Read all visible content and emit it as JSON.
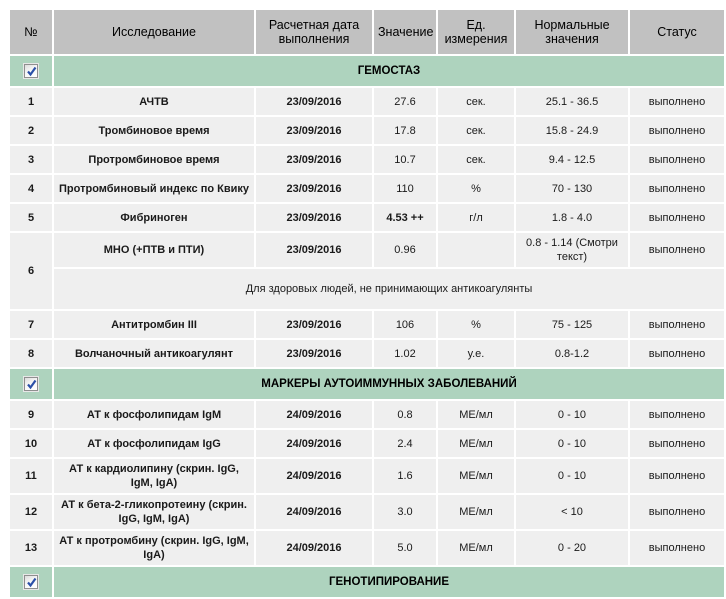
{
  "colors": {
    "header-gray": "#c1c1c1",
    "section-green": "#aed3be",
    "row-gray": "#efefef",
    "check-blue": "#2b50a8"
  },
  "table": {
    "columns": [
      {
        "label": "№"
      },
      {
        "label": "Исследование"
      },
      {
        "label": "Расчетная дата выполнения"
      },
      {
        "label": "Значение"
      },
      {
        "label": "Ед. измерения"
      },
      {
        "label": "Нормальные значения"
      },
      {
        "label": "Статус"
      }
    ],
    "rows": [
      {
        "type": "section",
        "title": "ГЕМОСТАЗ",
        "checked": true
      },
      {
        "type": "test",
        "num": "1",
        "name": "АЧТВ",
        "date": "23/09/2016",
        "value": "27.6",
        "unit": "сек.",
        "normal": "25.1 - 36.5",
        "status": "выполнено"
      },
      {
        "type": "test",
        "num": "2",
        "name": "Тромбиновое время",
        "date": "23/09/2016",
        "value": "17.8",
        "unit": "сек.",
        "normal": "15.8 - 24.9",
        "status": "выполнено"
      },
      {
        "type": "test",
        "num": "3",
        "name": "Протромбиновое время",
        "date": "23/09/2016",
        "value": "10.7",
        "unit": "сек.",
        "normal": "9.4 - 12.5",
        "status": "выполнено"
      },
      {
        "type": "test",
        "num": "4",
        "name": "Протромбиновый индекс по Квику",
        "date": "23/09/2016",
        "value": "110",
        "unit": "%",
        "normal": "70 - 130",
        "status": "выполнено"
      },
      {
        "type": "test",
        "num": "5",
        "name": "Фибриноген",
        "date": "23/09/2016",
        "value": "4.53 ++",
        "value_bold": true,
        "unit": "г/л",
        "normal": "1.8 - 4.0",
        "status": "выполнено"
      },
      {
        "type": "test",
        "num": "6",
        "name": "МНО (+ПТВ и ПТИ)",
        "date": "23/09/2016",
        "value": "0.96",
        "unit": "",
        "normal": "0.8 - 1.14 (Смотри текст)",
        "status": "выполнено",
        "note": "Для здоровых людей, не принимающих антикоагулянты"
      },
      {
        "type": "test",
        "num": "7",
        "name": "Антитромбин III",
        "date": "23/09/2016",
        "value": "106",
        "unit": "%",
        "normal": "75 - 125",
        "status": "выполнено"
      },
      {
        "type": "test",
        "num": "8",
        "name": "Волчаночный антикоагулянт",
        "date": "23/09/2016",
        "value": "1.02",
        "unit": "у.е.",
        "normal": "0.8-1.2",
        "status": "выполнено"
      },
      {
        "type": "section",
        "title": "МАРКЕРЫ АУТОИММУННЫХ ЗАБОЛЕВАНИЙ",
        "checked": true
      },
      {
        "type": "test",
        "num": "9",
        "name": "АТ к фосфолипидам IgM",
        "date": "24/09/2016",
        "value": "0.8",
        "unit": "МЕ/мл",
        "normal": "0 - 10",
        "status": "выполнено"
      },
      {
        "type": "test",
        "num": "10",
        "name": "АТ к фосфолипидам IgG",
        "date": "24/09/2016",
        "value": "2.4",
        "unit": "МЕ/мл",
        "normal": "0 - 10",
        "status": "выполнено"
      },
      {
        "type": "test",
        "num": "11",
        "name": "АТ к кардиолипину (скрин. IgG, IgM, IgA)",
        "date": "24/09/2016",
        "value": "1.6",
        "unit": "МЕ/мл",
        "normal": "0 - 10",
        "status": "выполнено"
      },
      {
        "type": "test",
        "num": "12",
        "name": "АТ к бета-2-гликопротеину (скрин. IgG, IgM, IgA)",
        "date": "24/09/2016",
        "value": "3.0",
        "unit": "МЕ/мл",
        "normal": "< 10",
        "status": "выполнено"
      },
      {
        "type": "test",
        "num": "13",
        "name": "АТ к протромбину (скрин. IgG, IgM, IgA)",
        "date": "24/09/2016",
        "value": "5.0",
        "unit": "МЕ/мл",
        "normal": "0 - 20",
        "status": "выполнено"
      },
      {
        "type": "section",
        "title": "ГЕНОТИПИРОВАНИЕ",
        "checked": true
      }
    ]
  }
}
